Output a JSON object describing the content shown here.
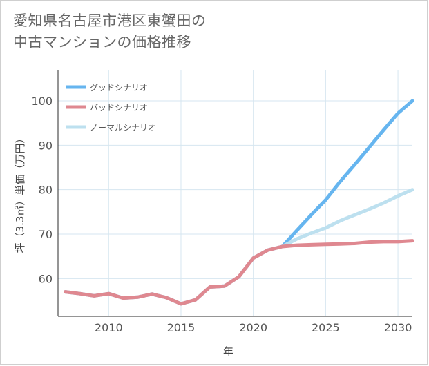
{
  "title": {
    "line1": "愛知県名古屋市港区東蟹田の",
    "line2": "中古マンションの価格推移"
  },
  "colors": {
    "good": "#66b5ef",
    "bad": "#df8890",
    "normal": "#bde0ef",
    "grid": "#d6e6f0"
  },
  "chart_data": {
    "type": "line",
    "xlabel": "年",
    "ylabel": "坪（3.3㎡）単価（万円）",
    "xlim": [
      2006.5,
      2031
    ],
    "ylim": [
      51.5,
      107
    ],
    "xticks": [
      2010,
      2015,
      2020,
      2025,
      2030
    ],
    "yticks": [
      60,
      70,
      80,
      90,
      100
    ],
    "legend_position": "top-left",
    "series": [
      {
        "key": "good",
        "name": "グッドシナリオ",
        "x": [
          2007,
          2008,
          2009,
          2010,
          2011,
          2012,
          2013,
          2014,
          2015,
          2016,
          2017,
          2018,
          2019,
          2020,
          2021,
          2022,
          2023,
          2024,
          2025,
          2026,
          2027,
          2028,
          2029,
          2030,
          2031
        ],
        "values": [
          57.0,
          56.6,
          56.1,
          56.6,
          55.6,
          55.8,
          56.5,
          55.7,
          54.3,
          55.2,
          58.1,
          58.3,
          60.4,
          64.6,
          66.4,
          67.2,
          70.8,
          74.3,
          77.7,
          81.8,
          85.6,
          89.5,
          93.4,
          97.2,
          100.0
        ]
      },
      {
        "key": "bad",
        "name": "バッドシナリオ",
        "x": [
          2007,
          2008,
          2009,
          2010,
          2011,
          2012,
          2013,
          2014,
          2015,
          2016,
          2017,
          2018,
          2019,
          2020,
          2021,
          2022,
          2023,
          2024,
          2025,
          2026,
          2027,
          2028,
          2029,
          2030,
          2031
        ],
        "values": [
          57.0,
          56.6,
          56.1,
          56.6,
          55.6,
          55.8,
          56.5,
          55.7,
          54.3,
          55.2,
          58.1,
          58.3,
          60.4,
          64.6,
          66.4,
          67.2,
          67.5,
          67.6,
          67.7,
          67.8,
          67.9,
          68.2,
          68.3,
          68.3,
          68.5
        ]
      },
      {
        "key": "normal",
        "name": "ノーマルシナリオ",
        "x": [
          2007,
          2008,
          2009,
          2010,
          2011,
          2012,
          2013,
          2014,
          2015,
          2016,
          2017,
          2018,
          2019,
          2020,
          2021,
          2022,
          2023,
          2024,
          2025,
          2026,
          2027,
          2028,
          2029,
          2030,
          2031
        ],
        "values": [
          57.0,
          56.6,
          56.1,
          56.6,
          55.6,
          55.8,
          56.5,
          55.7,
          54.3,
          55.2,
          58.1,
          58.3,
          60.4,
          64.6,
          66.4,
          67.2,
          68.9,
          70.2,
          71.4,
          73.0,
          74.3,
          75.6,
          77.0,
          78.6,
          80.0
        ]
      }
    ]
  }
}
